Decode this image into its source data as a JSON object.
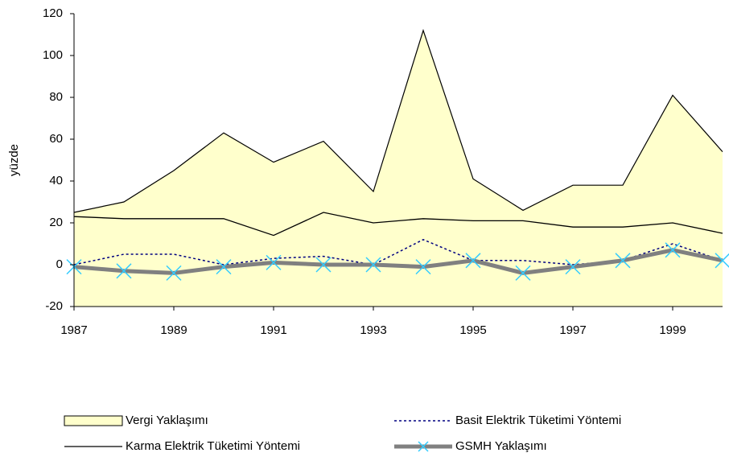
{
  "chart_data": {
    "type": "area-line",
    "y_label": "yüzde",
    "x": [
      1987,
      1988,
      1989,
      1990,
      1991,
      1992,
      1993,
      1994,
      1995,
      1996,
      1997,
      1998,
      1999,
      2000
    ],
    "xlim": [
      1987,
      2000
    ],
    "xticks": [
      1987,
      1989,
      1991,
      1993,
      1995,
      1997,
      1999
    ],
    "ylim": [
      -20,
      120
    ],
    "yticks": [
      -20,
      0,
      20,
      40,
      60,
      80,
      100,
      120
    ],
    "series": [
      {
        "name": "Vergi Yaklaşımı",
        "kind": "area",
        "color": "#ffffcc",
        "values": [
          25,
          30,
          45,
          63,
          49,
          59,
          35,
          112,
          41,
          26,
          38,
          38,
          81,
          54
        ]
      },
      {
        "name": "Basit Elektrik Tüketimi Yöntemi",
        "kind": "dotted",
        "color": "#000080",
        "values": [
          0,
          5,
          5,
          0,
          3,
          4,
          0,
          12,
          2,
          2,
          0,
          2,
          10,
          2
        ]
      },
      {
        "name": "Karma Elektrik Tüketimi Yöntemi",
        "kind": "line",
        "color": "#000000",
        "values": [
          23,
          22,
          22,
          22,
          14,
          25,
          20,
          22,
          21,
          21,
          18,
          18,
          20,
          15
        ]
      },
      {
        "name": "GSMH Yaklaşımı",
        "kind": "marker-line",
        "color": "#808080",
        "marker_color": "#33ccff",
        "values": [
          -1,
          -3,
          -4,
          -1,
          1,
          0,
          0,
          -1,
          2,
          -4,
          -1,
          2,
          7,
          2
        ]
      }
    ]
  }
}
